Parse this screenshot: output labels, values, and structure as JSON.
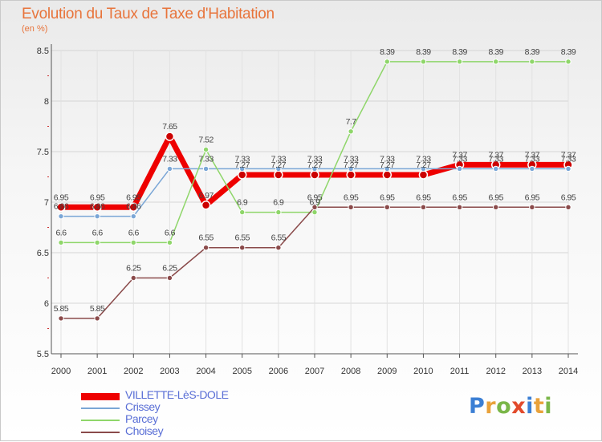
{
  "title": "Evolution du Taux de Taxe d'Habitation",
  "subtitle": "(en %)",
  "logo": {
    "text": "Proxiti",
    "letters": [
      {
        "ch": "P",
        "color": "#3b7fd4"
      },
      {
        "ch": "r",
        "color": "#e9a23b"
      },
      {
        "ch": "o",
        "color": "#7ab648"
      },
      {
        "ch": "x",
        "color": "#e24a2b"
      },
      {
        "ch": "i",
        "color": "#3b7fd4"
      },
      {
        "ch": "t",
        "color": "#e9a23b"
      },
      {
        "ch": "i",
        "color": "#7ab648"
      }
    ]
  },
  "chart_data": {
    "type": "line",
    "title": "Evolution du Taux de Taxe d'Habitation",
    "ylabel": "(en %)",
    "xlabel": "",
    "x": [
      "2000",
      "2001",
      "2002",
      "2003",
      "2004",
      "2005",
      "2006",
      "2007",
      "2008",
      "2009",
      "2010",
      "2011",
      "2012",
      "2013",
      "2014"
    ],
    "ylim": [
      5.5,
      8.5
    ],
    "yticks": [
      "5.5",
      "6",
      "6.5",
      "7",
      "7.5",
      "8",
      "8.5"
    ],
    "grid": true,
    "legend_position": "bottom-left",
    "series": [
      {
        "name": "VILLETTE-LèS-DOLE",
        "color": "#ee0000",
        "width": 7,
        "values": [
          6.95,
          6.95,
          6.95,
          7.65,
          6.97,
          7.27,
          7.27,
          7.27,
          7.27,
          7.27,
          7.27,
          7.37,
          7.37,
          7.37,
          7.37
        ],
        "labels": [
          "6.95",
          "6.95",
          "6.95",
          "7.65",
          "6.97",
          "7.27",
          "7.27",
          "7.27",
          "7.27",
          "7.27",
          "7.27",
          "7.37",
          "7.37",
          "7.37",
          "7.37"
        ]
      },
      {
        "name": "Crissey",
        "color": "#7aa6d6",
        "width": 1.5,
        "values": [
          6.86,
          6.86,
          6.86,
          7.33,
          7.33,
          7.33,
          7.33,
          7.33,
          7.33,
          7.33,
          7.33,
          7.33,
          7.33,
          7.33,
          7.33
        ],
        "labels": [
          "6.86",
          "6.86",
          "6.86",
          "7.33",
          "7.33",
          "7.33",
          "7.33",
          "7.33",
          "7.33",
          "7.33",
          "7.33",
          "7.33",
          "7.33",
          "7.33",
          "7.33"
        ]
      },
      {
        "name": "Parcey",
        "color": "#8fd66a",
        "width": 1.5,
        "values": [
          6.6,
          6.6,
          6.6,
          6.6,
          7.52,
          6.9,
          6.9,
          6.9,
          7.7,
          8.39,
          8.39,
          8.39,
          8.39,
          8.39,
          8.39
        ],
        "labels": [
          "6.6",
          "6.6",
          "6.6",
          "6.6",
          "7.52",
          "6.9",
          "6.9",
          "6.9",
          "7.7",
          "8.39",
          "8.39",
          "8.39",
          "8.39",
          "8.39",
          "8.39"
        ]
      },
      {
        "name": "Choisey",
        "color": "#8a4a4a",
        "width": 1.5,
        "values": [
          5.85,
          5.85,
          6.25,
          6.25,
          6.55,
          6.55,
          6.55,
          6.95,
          6.95,
          6.95,
          6.95,
          6.95,
          6.95,
          6.95,
          6.95
        ],
        "labels": [
          "5.85",
          "5.85",
          "6.25",
          "6.25",
          "6.55",
          "6.55",
          "6.55",
          "6.95",
          "6.95",
          "6.95",
          "6.95",
          "6.95",
          "6.95",
          "6.95",
          "6.95"
        ]
      }
    ]
  }
}
